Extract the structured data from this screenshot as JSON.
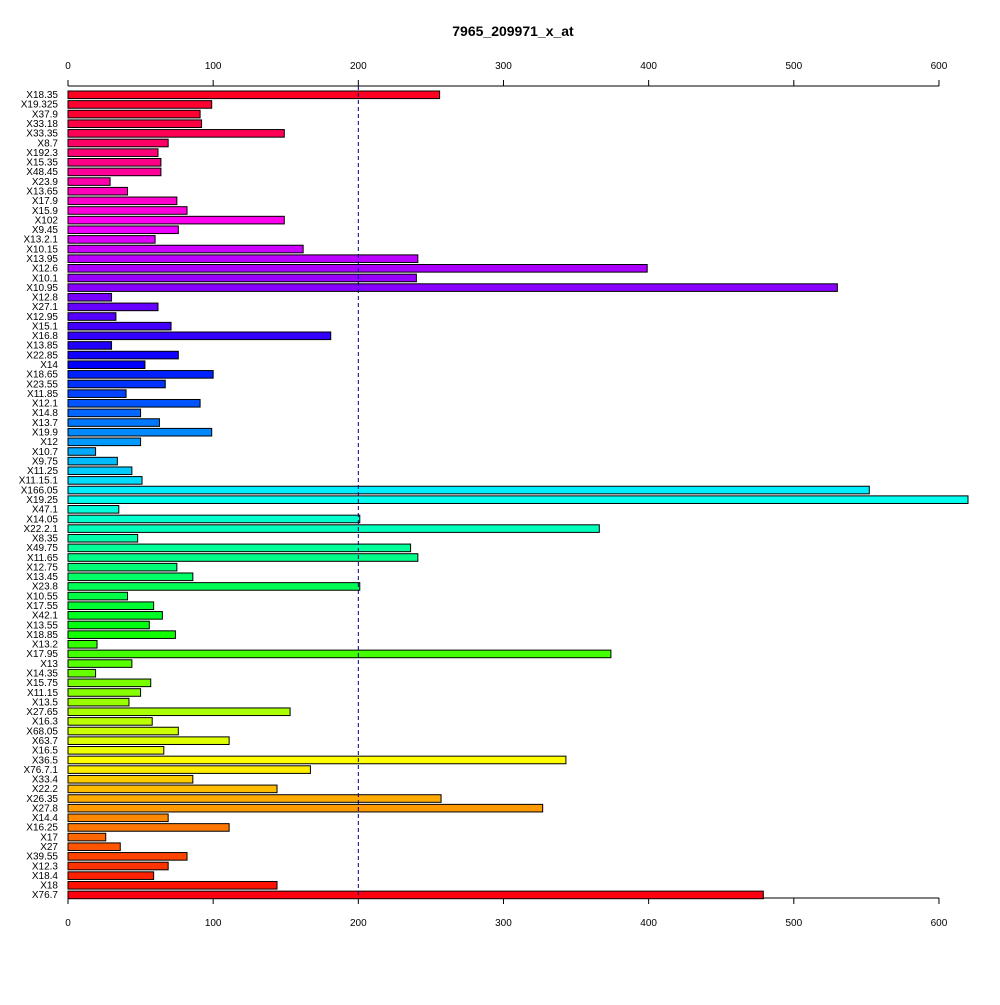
{
  "chart_data": {
    "type": "bar",
    "orientation": "horizontal",
    "title": "7965_209971_x_at",
    "xlabel": "",
    "ylabel": "",
    "xlim": [
      0,
      620
    ],
    "x_ticks": [
      0,
      100,
      200,
      300,
      400,
      500,
      600
    ],
    "x_tick_labels": [
      "0",
      "100",
      "200",
      "300",
      "400",
      "500",
      "600"
    ],
    "axes": [
      "top",
      "bottom"
    ],
    "reference_line": {
      "value": 200,
      "style": "dashed",
      "color": "#000080"
    },
    "grid": false,
    "legend": "none",
    "categories": [
      "X18.35",
      "X19.325",
      "X37.9",
      "X33.18",
      "X33.35",
      "X8.7",
      "X192.3",
      "X15.35",
      "X48.45",
      "X23.9",
      "X13.65",
      "X17.9",
      "X15.9",
      "X102",
      "X9.45",
      "X13.2.1",
      "X10.15",
      "X13.95",
      "X12.6",
      "X10.1",
      "X10.95",
      "X12.8",
      "X27.1",
      "X12.95",
      "X15.1",
      "X16.8",
      "X13.85",
      "X22.85",
      "X14",
      "X18.65",
      "X23.55",
      "X11.85",
      "X12.1",
      "X14.8",
      "X13.7",
      "X19.9",
      "X12",
      "X10.7",
      "X9.75",
      "X11.25",
      "X11.15.1",
      "X166.05",
      "X19.25",
      "X47.1",
      "X14.05",
      "X22.2.1",
      "X8.35",
      "X49.75",
      "X11.65",
      "X12.75",
      "X13.45",
      "X23.8",
      "X10.55",
      "X17.55",
      "X42.1",
      "X13.55",
      "X18.85",
      "X13.2",
      "X17.95",
      "X13",
      "X14.35",
      "X15.75",
      "X11.15",
      "X13.5",
      "X27.65",
      "X16.3",
      "X68.05",
      "X63.7",
      "X16.5",
      "X36.5",
      "X76.7.1",
      "X33.4",
      "X22.2",
      "X26.35",
      "X27.8",
      "X14.4",
      "X16.25",
      "X17",
      "X27",
      "X39.55",
      "X12.3",
      "X18.4",
      "X18",
      "X76.7"
    ],
    "values": [
      256,
      99,
      91,
      92,
      149,
      69,
      62,
      64,
      64,
      29,
      41,
      75,
      82,
      149,
      76,
      60,
      162,
      241,
      399,
      240,
      530,
      30,
      62,
      33,
      71,
      181,
      30,
      76,
      53,
      100,
      67,
      40,
      91,
      50,
      63,
      99,
      50,
      19,
      34,
      44,
      51,
      552,
      620,
      35,
      201,
      366,
      48,
      236,
      241,
      75,
      86,
      201,
      41,
      59,
      65,
      56,
      74,
      20,
      374,
      44,
      19,
      57,
      50,
      42,
      153,
      58,
      76,
      111,
      66,
      343,
      167,
      86,
      144,
      257,
      327,
      69,
      111,
      26,
      36,
      82,
      69,
      59,
      144,
      479
    ],
    "bar_colors": [
      "#ff0022",
      "#ff0033",
      "#ff0033",
      "#ff0044",
      "#ff0055",
      "#ff0066",
      "#ff0077",
      "#ff0088",
      "#ff0099",
      "#ff00aa",
      "#ff00bb",
      "#ff00cc",
      "#ff00dd",
      "#ff00ee",
      "#ee00ff",
      "#dd00ff",
      "#cc00ff",
      "#bb00ff",
      "#aa00ff",
      "#9900ff",
      "#8800ff",
      "#7700ff",
      "#6600ff",
      "#5500ff",
      "#4400ff",
      "#3300ff",
      "#2200ff",
      "#1100ff",
      "#0000ff",
      "#0022ff",
      "#0033ff",
      "#0044ff",
      "#0055ff",
      "#0066ff",
      "#0077ff",
      "#0088ff",
      "#0099ff",
      "#00aaff",
      "#00bbff",
      "#00ccff",
      "#00ddff",
      "#00eeff",
      "#00ffee",
      "#00ffdd",
      "#00ffcc",
      "#00ffbb",
      "#00ffaa",
      "#00ff99",
      "#00ff88",
      "#00ff77",
      "#00ff66",
      "#00ff55",
      "#00ff44",
      "#00ff33",
      "#00ff22",
      "#00ff11",
      "#11ff00",
      "#33ff00",
      "#44ff00",
      "#55ff00",
      "#66ff00",
      "#77ff00",
      "#88ff00",
      "#99ff00",
      "#aaff00",
      "#bbff00",
      "#ccff00",
      "#ddff00",
      "#eeff00",
      "#ffff00",
      "#ffee00",
      "#ffcc00",
      "#ffbb00",
      "#ffaa00",
      "#ff9900",
      "#ff8800",
      "#ff7700",
      "#ff6600",
      "#ff5500",
      "#ff4400",
      "#ff3300",
      "#ff2200",
      "#ff1100",
      "#ff0011"
    ]
  }
}
